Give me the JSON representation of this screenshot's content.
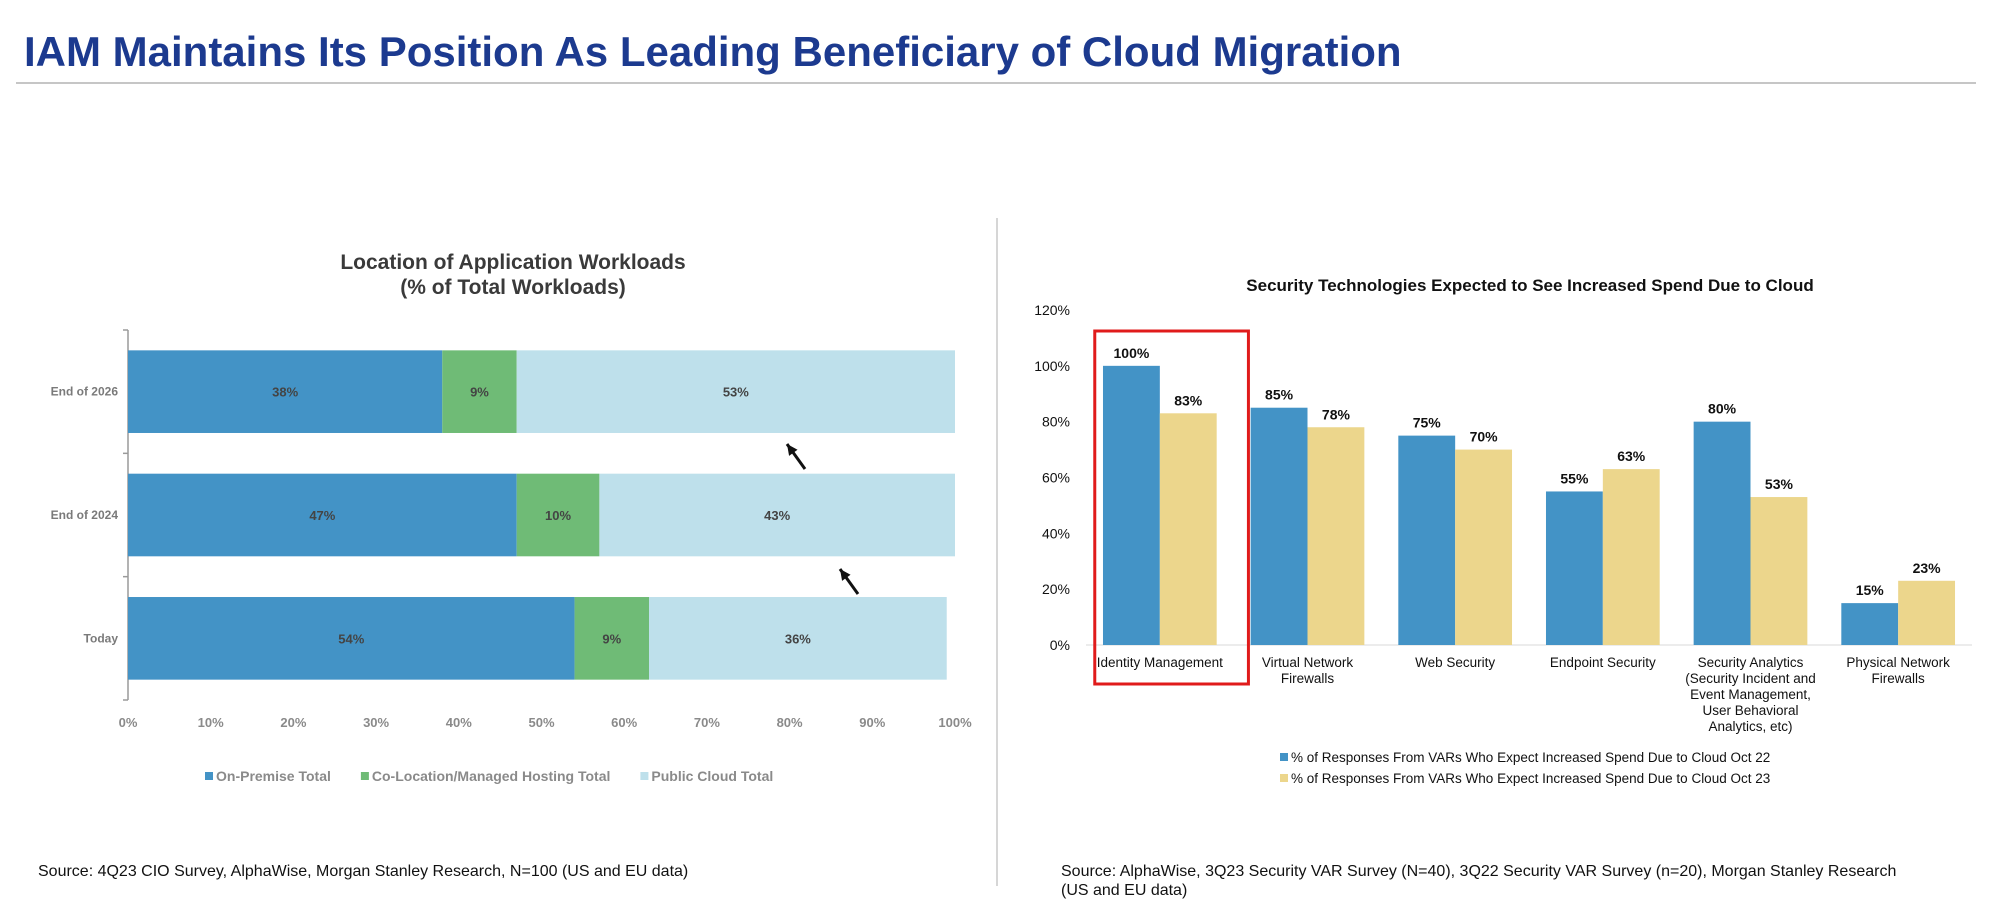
{
  "page": {
    "title": "IAM Maintains Its Position As Leading Beneficiary of Cloud Migration"
  },
  "colors": {
    "title": "#1c3a8f",
    "on_premise": "#4393c6",
    "colocation": "#6fbb76",
    "public_cloud": "#bee0eb",
    "oct22": "#4393c6",
    "oct23": "#ecd68c",
    "highlight": "#e01b1b"
  },
  "chart_data": [
    {
      "type": "bar",
      "orientation": "horizontal",
      "stacked": true,
      "title": "Location of Application Workloads",
      "subtitle": "(% of Total Workloads)",
      "categories": [
        "End of 2026",
        "End of 2024",
        "Today"
      ],
      "series": [
        {
          "name": "On-Premise Total",
          "values": [
            38,
            47,
            54
          ],
          "labels": [
            "38%",
            "47%",
            "54%"
          ]
        },
        {
          "name": "Co-Location/Managed Hosting Total",
          "values": [
            9,
            10,
            9
          ],
          "labels": [
            "9%",
            "10%",
            "9%"
          ]
        },
        {
          "name": "Public Cloud Total",
          "values": [
            53,
            43,
            36
          ],
          "labels": [
            "53%",
            "43%",
            "36%"
          ]
        }
      ],
      "xlim": [
        0,
        100
      ],
      "xticks": [
        "0%",
        "10%",
        "20%",
        "30%",
        "40%",
        "50%",
        "60%",
        "70%",
        "80%",
        "90%",
        "100%"
      ],
      "legend_position": "bottom",
      "annotations": [
        "arrow toward End of 2026 public cloud",
        "arrow toward End of 2024 public cloud"
      ],
      "source": "Source: 4Q23 CIO Survey, AlphaWise, Morgan Stanley Research, N=100 (US and EU data)"
    },
    {
      "type": "bar",
      "orientation": "vertical",
      "stacked": false,
      "title": "Security Technologies Expected to See Increased Spend Due to Cloud",
      "categories": [
        [
          "Identity Management"
        ],
        [
          "Virtual Network",
          "Firewalls"
        ],
        [
          "Web Security"
        ],
        [
          "Endpoint Security"
        ],
        [
          "Security Analytics",
          "(Security Incident and",
          "Event Management,",
          "User Behavioral",
          "Analytics, etc)"
        ],
        [
          "Physical Network",
          "Firewalls"
        ]
      ],
      "series": [
        {
          "name": "% of Responses From VARs Who Expect Increased Spend Due to Cloud Oct 22",
          "values": [
            100,
            85,
            75,
            55,
            80,
            15
          ],
          "labels": [
            "100%",
            "85%",
            "75%",
            "55%",
            "80%",
            "15%"
          ]
        },
        {
          "name": "% of Responses From VARs Who Expect Increased Spend Due to Cloud Oct 23",
          "values": [
            83,
            78,
            70,
            63,
            53,
            23
          ],
          "labels": [
            "83%",
            "78%",
            "70%",
            "63%",
            "53%",
            "23%"
          ]
        }
      ],
      "ylim": [
        0,
        120
      ],
      "yticks": [
        "0%",
        "20%",
        "40%",
        "60%",
        "80%",
        "100%",
        "120%"
      ],
      "highlighted_category": "Identity Management",
      "legend_position": "bottom",
      "source_lines": [
        "Source: AlphaWise, 3Q23 Security VAR Survey (N=40), 3Q22 Security VAR Survey (n=20), Morgan Stanley Research",
        "(US and EU data)"
      ]
    }
  ]
}
